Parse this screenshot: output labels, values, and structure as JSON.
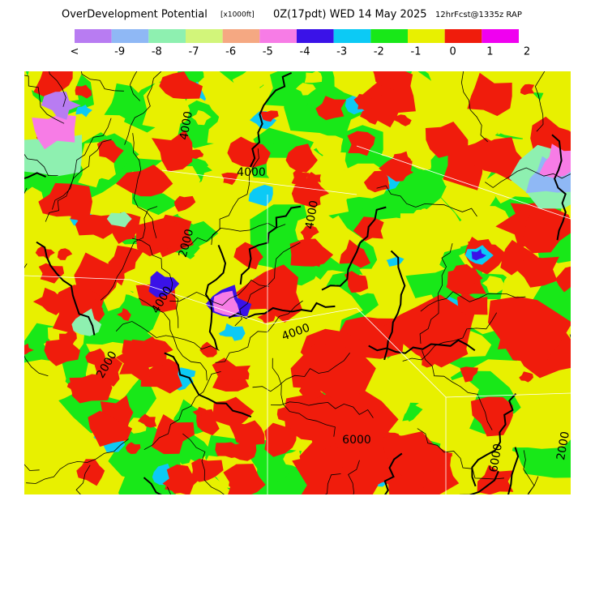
{
  "header": {
    "title": "OverDevelopment Potential",
    "units": "[x1000ft]",
    "valid": "0Z(17pdt) WED 14 May 2025",
    "model": "12hrFcst@1335z RAP"
  },
  "legend": {
    "colors": [
      "#b87cf2",
      "#8fb8f5",
      "#8ef0b0",
      "#d2f57a",
      "#f5a882",
      "#f77ce6",
      "#3a12e8",
      "#0ccaf5",
      "#18e818",
      "#e8f000",
      "#f01c0c",
      "#f000f0"
    ],
    "labels": [
      "<",
      "-9",
      "-8",
      "-7",
      "-6",
      "-5",
      "-4",
      "-3",
      "-2",
      "-1",
      "0",
      "1",
      "2"
    ]
  },
  "map_labels": [
    "4000",
    "4000",
    "4000",
    "2000",
    "4000",
    "2000",
    "6000",
    "6000",
    "4000",
    "2000"
  ]
}
